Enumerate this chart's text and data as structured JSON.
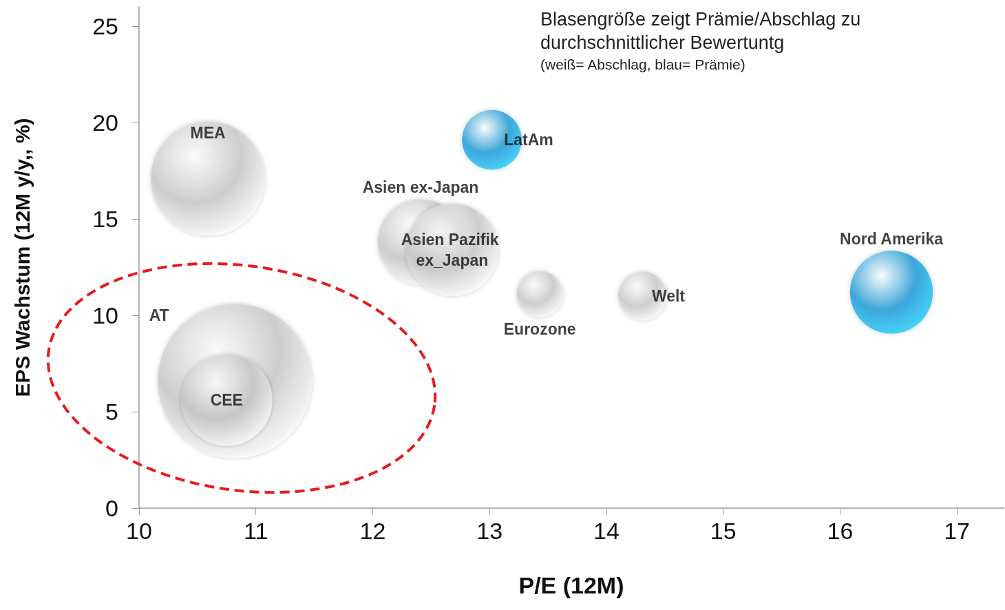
{
  "chart_data": {
    "type": "bubble",
    "title": "Blasengröße zeigt Prämie/Abschlag zu durchschnittlicher Bewertuntg",
    "subtitle": "(weiß= Abschlag, blau= Prämie)",
    "xlabel": "P/E (12M)",
    "ylabel": "EPS Wachstum (12M y/y,, %)",
    "xlim": [
      10,
      17.4
    ],
    "xticks": [
      10,
      11,
      12,
      13,
      14,
      15,
      16,
      17
    ],
    "ylim": [
      0,
      26
    ],
    "yticks": [
      0,
      5,
      10,
      15,
      20,
      25
    ],
    "grid": false,
    "legend": false,
    "series": [
      {
        "name": "MEA",
        "color": "#c8c8c8",
        "x": [
          10.59
        ],
        "values": [
          17.1
        ],
        "sizes": [
          0.55
        ]
      },
      {
        "name": "LatAm",
        "color": "#1a9ad6",
        "x": [
          13.02
        ],
        "values": [
          19.1
        ],
        "sizes": [
          0.15
        ]
      },
      {
        "name": "Asien ex-Japan",
        "color": "#c8c8c8",
        "x": [
          12.41
        ],
        "values": [
          13.8
        ],
        "sizes": [
          0.31
        ]
      },
      {
        "name": "Asien Pazifik ex_Japan",
        "color": "#c8c8c8",
        "x": [
          12.68
        ],
        "values": [
          13.4
        ],
        "sizes": [
          0.36
        ]
      },
      {
        "name": "Eurozone",
        "color": "#c8c8c8",
        "x": [
          13.43
        ],
        "values": [
          11.1
        ],
        "sizes": [
          0.09
        ]
      },
      {
        "name": "Welt",
        "color": "#c8c8c8",
        "x": [
          14.31
        ],
        "values": [
          11.0
        ],
        "sizes": [
          0.1
        ]
      },
      {
        "name": "Nord Amerika",
        "color": "#1a9ad6",
        "x": [
          16.44
        ],
        "values": [
          11.2
        ],
        "sizes": [
          0.29
        ]
      },
      {
        "name": "AT",
        "color": "#c8c8c8",
        "x": [
          10.82
        ],
        "values": [
          6.6
        ],
        "sizes": [
          1
        ]
      },
      {
        "name": "CEE",
        "color": "#c8c8c8",
        "x": [
          10.75
        ],
        "values": [
          5.6
        ],
        "sizes": [
          0.35
        ]
      }
    ]
  }
}
